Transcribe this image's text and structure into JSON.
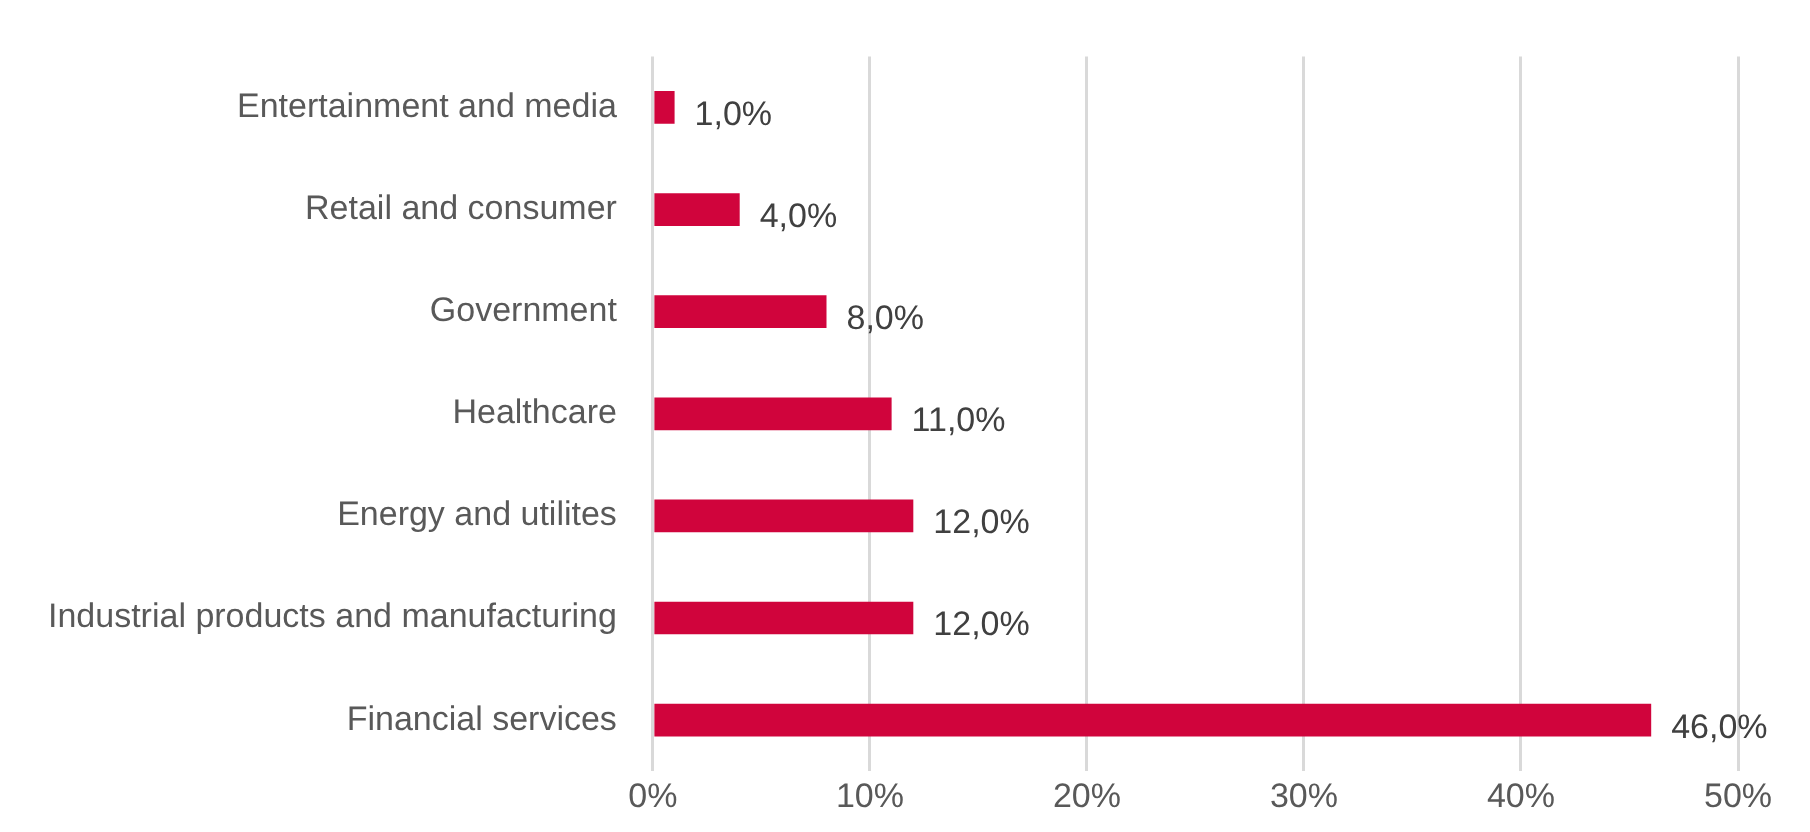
{
  "chart_data": {
    "type": "bar",
    "orientation": "horizontal",
    "categories": [
      "Entertainment and media",
      "Retail and consumer",
      "Government",
      "Healthcare",
      "Energy and utilites",
      "Industrial products and manufacturing",
      "Financial services"
    ],
    "values": [
      1,
      4,
      8,
      11,
      12,
      12,
      46
    ],
    "value_labels": [
      "1,0%",
      "4,0%",
      "8,0%",
      "11,0%",
      "12,0%",
      "12,0%",
      "46,0%"
    ],
    "color": "#d0043c",
    "xlim": [
      0,
      50
    ],
    "xticks": [
      {
        "value": 0,
        "label": "0%"
      },
      {
        "value": 10,
        "label": "10%"
      },
      {
        "value": 20,
        "label": "20%"
      },
      {
        "value": 30,
        "label": "30%"
      },
      {
        "value": 40,
        "label": "40%"
      },
      {
        "value": 50,
        "label": "50%"
      }
    ],
    "grid": "x",
    "legend": false
  }
}
